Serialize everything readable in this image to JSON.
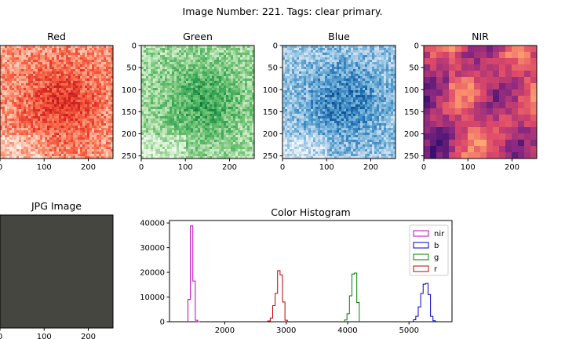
{
  "suptitle": "Image Number: 221. Tags: clear primary.",
  "panels": [
    {
      "title": "Red",
      "cmap": "reds",
      "xticks": [
        "0",
        "100",
        "200"
      ],
      "yticks": []
    },
    {
      "title": "Green",
      "cmap": "greens",
      "xticks": [
        "0",
        "100",
        "200"
      ],
      "yticks": [
        "0",
        "50",
        "100",
        "150",
        "200",
        "250"
      ]
    },
    {
      "title": "Blue",
      "cmap": "blues",
      "xticks": [
        "0",
        "100",
        "200"
      ],
      "yticks": [
        "0",
        "50",
        "100",
        "150",
        "200",
        "250"
      ]
    },
    {
      "title": "NIR",
      "cmap": "magma",
      "xticks": [
        "0",
        "100",
        "200"
      ],
      "yticks": [
        "0",
        "50",
        "100",
        "150",
        "200",
        "250"
      ]
    },
    {
      "title": "JPG Image",
      "cmap": "jpg",
      "xticks": [
        "0",
        "100",
        "200"
      ],
      "yticks": []
    }
  ],
  "chart_data": {
    "type": "step-histogram",
    "title": "Color Histogram",
    "xlabel": "",
    "ylabel": "",
    "xlim": [
      1100,
      5700
    ],
    "ylim": [
      0,
      41000
    ],
    "xticks": [
      2000,
      3000,
      4000,
      5000
    ],
    "yticks": [
      0,
      10000,
      20000,
      30000,
      40000
    ],
    "legend_position": "top-right",
    "series": [
      {
        "name": "nir",
        "color": "#bf00bf",
        "x": [
          1400,
          1440,
          1480,
          1520,
          1560
        ],
        "values": [
          9000,
          38800,
          16500,
          600,
          0
        ]
      },
      {
        "name": "b",
        "color": "#0000bf",
        "x": [
          5070,
          5110,
          5150,
          5190,
          5230,
          5270,
          5310,
          5350,
          5390
        ],
        "values": [
          800,
          2200,
          6000,
          11500,
          15200,
          15500,
          11000,
          2200,
          400
        ]
      },
      {
        "name": "g",
        "color": "#007f00",
        "x": [
          3950,
          3990,
          4030,
          4070,
          4110,
          4150
        ],
        "values": [
          700,
          3200,
          10500,
          19300,
          19700,
          7800
        ]
      },
      {
        "name": "r",
        "color": "#bf0000",
        "x": [
          2700,
          2740,
          2780,
          2820,
          2860,
          2900,
          2940,
          2980
        ],
        "values": [
          300,
          1500,
          6500,
          11500,
          20700,
          19000,
          8000,
          600
        ]
      }
    ]
  }
}
